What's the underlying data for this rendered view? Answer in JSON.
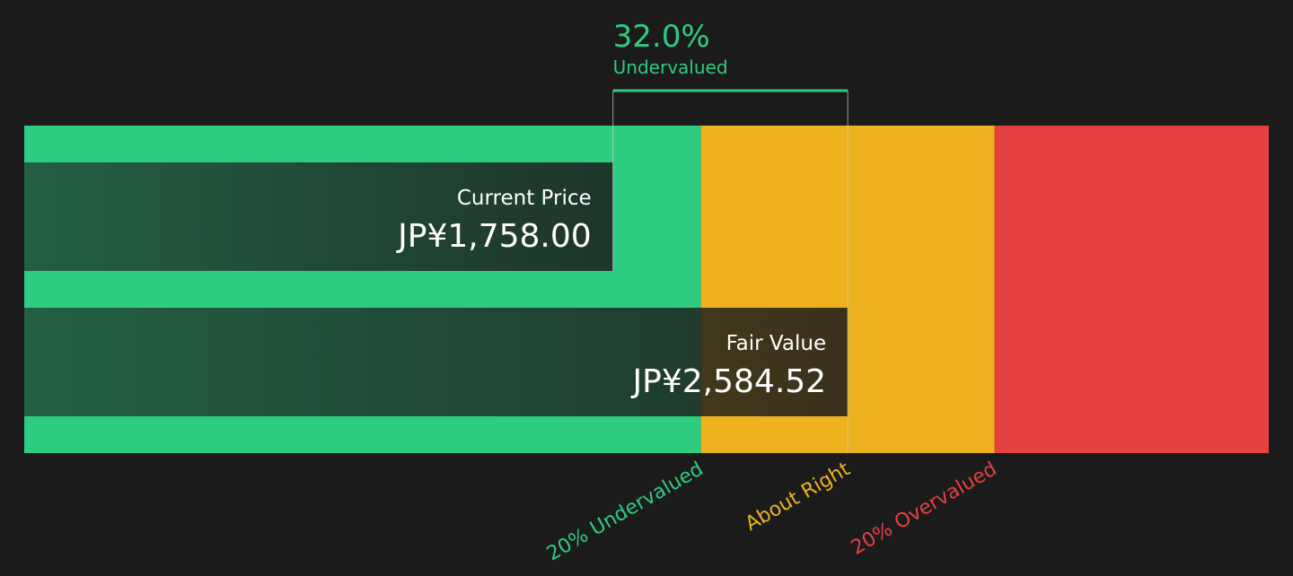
{
  "chart_data": {
    "type": "valuation",
    "categories": [
      "Current Price",
      "Fair Value"
    ],
    "values": [
      1758,
      2584.52
    ],
    "value_labels": [
      "JP¥1,758.00",
      "JP¥2,584.52"
    ],
    "xlim": [
      -315,
      4067
    ],
    "gap": {
      "value": 32.0,
      "label": "32.0%",
      "text": "Undervalued",
      "color": "#2ecc80"
    },
    "zones": [
      {
        "label": "20% Undervalued",
        "value": 2067.6,
        "color": "#2ecc80"
      },
      {
        "label": "About Right",
        "value": 2584.52,
        "color": "#edb21e"
      },
      {
        "label": "20% Overvalued",
        "value": 3101.4,
        "color": "#e64141"
      }
    ]
  }
}
